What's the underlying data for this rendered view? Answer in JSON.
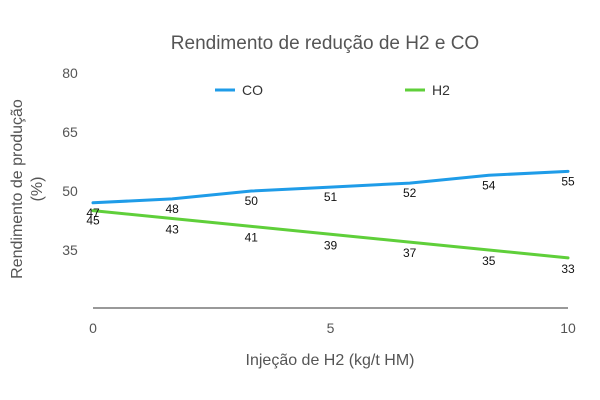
{
  "chart_data": {
    "type": "line",
    "title": "Rendimento de redução de H2 e CO",
    "xlabel": "Injeção de H2 (kg/t HM)",
    "ylabel_lines": [
      "Rendimento de produção",
      "(%)"
    ],
    "x": [
      0,
      1.667,
      3.333,
      5,
      6.667,
      8.333,
      10
    ],
    "xlim": [
      0,
      10
    ],
    "ylim": [
      20,
      80
    ],
    "x_ticks": [
      "0",
      "5",
      "10"
    ],
    "y_ticks": [
      "80",
      "65",
      "50",
      "35"
    ],
    "grid": false,
    "legend_position": "top",
    "series": [
      {
        "name": "CO",
        "color": "#1f9ce8",
        "values": [
          47,
          48,
          50,
          51,
          52,
          54,
          55
        ]
      },
      {
        "name": "H2",
        "color": "#5fcf3a",
        "values": [
          45,
          43,
          41,
          39,
          37,
          35,
          33
        ]
      }
    ]
  }
}
